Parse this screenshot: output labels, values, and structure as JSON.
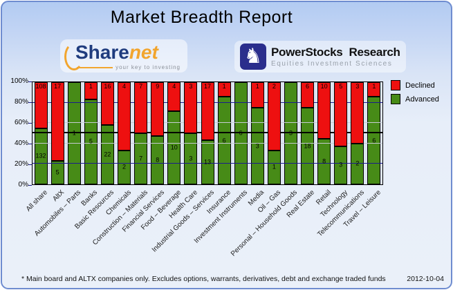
{
  "title": "Market Breadth Report",
  "logos": {
    "sharenet": {
      "text_primary": "Share",
      "text_secondary": "net",
      "tagline": "your key to investing",
      "color_primary": "#1f3c7e",
      "color_secondary": "#f2a52e"
    },
    "powerstocks": {
      "name_left": "PowerStocks",
      "name_right": "Research",
      "tagline": "Equities Investment Sciences",
      "icon": "knight-icon",
      "glyph": "♞",
      "color": "#2b2e8c"
    }
  },
  "chart_data": {
    "type": "bar",
    "stacked": true,
    "normalized": "percent_of_total",
    "title": "",
    "xlabel": "",
    "ylabel": "",
    "ylim": [
      0,
      100
    ],
    "ylabel_ticks": [
      "0%",
      "20%",
      "40%",
      "60%",
      "80%",
      "100%"
    ],
    "legend_position": "top-right",
    "grid": true,
    "gridlines": [
      {
        "pct": 20,
        "color": "#1a1a8c",
        "width": 1
      },
      {
        "pct": 40,
        "color": "#c6cbd4",
        "width": 1
      },
      {
        "pct": 50,
        "color": "#000000",
        "width": 2
      },
      {
        "pct": 60,
        "color": "#c6cbd4",
        "width": 1
      },
      {
        "pct": 80,
        "color": "#1a1a8c",
        "width": 1
      }
    ],
    "categories": [
      "All share",
      "AltX",
      "Automobiles – Parts",
      "Banks",
      "Basic Resources",
      "Chemicals",
      "Construction – Materials",
      "Financial Services",
      "Food – Beverage",
      "Health Care",
      "Industrial Goods – Services",
      "Insurance",
      "Investment Instruments",
      "Media",
      "Oil – Gas",
      "Personal – Household Goods",
      "Real Estate",
      "Retail",
      "Technology",
      "Telecommunications",
      "Travel – Leisure"
    ],
    "series": [
      {
        "name": "Declined",
        "color": "#ee1010",
        "values": [
          108,
          17,
          0,
          1,
          16,
          4,
          7,
          9,
          4,
          3,
          17,
          1,
          0,
          1,
          2,
          0,
          6,
          10,
          5,
          3,
          1
        ]
      },
      {
        "name": "Advanced",
        "color": "#478b17",
        "values": [
          132,
          5,
          1,
          5,
          22,
          2,
          7,
          8,
          10,
          3,
          13,
          6,
          6,
          3,
          1,
          3,
          18,
          8,
          3,
          2,
          6
        ]
      }
    ]
  },
  "legend": [
    {
      "label": "Declined",
      "color": "#ee1010"
    },
    {
      "label": "Advanced",
      "color": "#478b17"
    }
  ],
  "footer": {
    "note": "* Main board and ALTX companies only. Excludes options, warrants, derivatives, debt and exchange traded funds",
    "date": "2012-10-04"
  }
}
